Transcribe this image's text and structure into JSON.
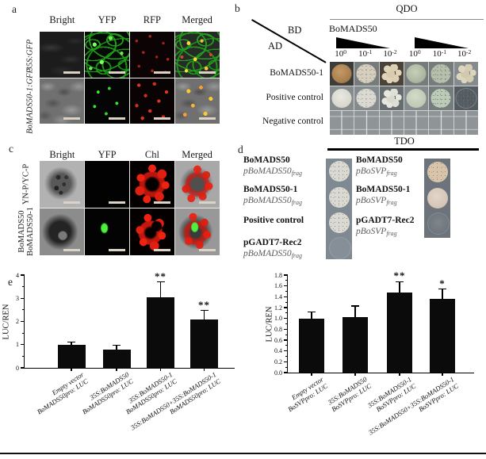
{
  "panels": {
    "a": {
      "letter": "a",
      "columns": [
        "Bright",
        "YFP",
        "RFP",
        "Merged"
      ],
      "rows": [
        {
          "label": "35S:GFP",
          "cells": [
            "bright-dark",
            "yfp-network",
            "rfp-sparse",
            "merged-network"
          ]
        },
        {
          "label": "BoMADS50-1:GFP",
          "cells": [
            "bright-light",
            "yfp-dots",
            "rfp-dots",
            "merged-dots"
          ]
        }
      ]
    },
    "b": {
      "letter": "b",
      "media_top": "QDO",
      "bd": "BD",
      "ad": "AD",
      "bait": "BoMADS50",
      "dilutions": [
        {
          "base": "10",
          "exp": "0"
        },
        {
          "base": "10",
          "exp": "-1"
        },
        {
          "base": "10",
          "exp": "-2"
        },
        {
          "base": "10",
          "exp": "0"
        },
        {
          "base": "10",
          "exp": "-1"
        },
        {
          "base": "10",
          "exp": "-2"
        }
      ],
      "rows": [
        {
          "label": "BoMADS50-1",
          "cells": [
            {
              "bg": "dark",
              "spot": "tan-solid"
            },
            {
              "bg": "mid",
              "spot": "cream-speckled"
            },
            {
              "bg": "brown",
              "spot": "cream-clumps"
            },
            {
              "bg": "mid",
              "spot": "green-solid"
            },
            {
              "bg": "mid",
              "spot": "green-speckled"
            },
            {
              "bg": "light",
              "spot": "pale-clumps"
            }
          ]
        },
        {
          "label": "Positive control",
          "cells": [
            {
              "bg": "light",
              "spot": "white-solid"
            },
            {
              "bg": "light",
              "spot": "white-speckled"
            },
            {
              "bg": "gray2",
              "spot": "white-clumps"
            },
            {
              "bg": "light",
              "spot": "palegreen-solid"
            },
            {
              "bg": "mid",
              "spot": "palegreen-speckled"
            },
            {
              "bg": "dark2",
              "spot": "faint-ring"
            }
          ]
        },
        {
          "label": "Negative control",
          "cells": [
            {
              "bg": "grid"
            },
            {
              "bg": "grid"
            },
            {
              "bg": "grid"
            },
            {
              "bg": "grid"
            },
            {
              "bg": "grid"
            },
            {
              "bg": "grid"
            }
          ]
        }
      ],
      "media_bottom": "TDO"
    },
    "c": {
      "letter": "c",
      "columns": [
        "Bright",
        "YFP",
        "Chl",
        "Merged"
      ],
      "rows": [
        {
          "label_lines": [
            "YN-P/YC-P"
          ],
          "cells": [
            "cbright1",
            "cblack",
            "cchl1",
            "cmerged1"
          ]
        },
        {
          "label_lines": [
            "BoMADS50",
            "BoMADS50-1"
          ],
          "cells": [
            "cbright2",
            "cyfp2",
            "cchl2",
            "cmerged2"
          ]
        }
      ]
    },
    "d": {
      "letter": "d",
      "left_rows": [
        {
          "name": "BoMADS50",
          "plasmid": "pBoMADS50",
          "frag": "frag"
        },
        {
          "name": "BoMADS50-1",
          "plasmid": "pBoMADS50",
          "frag": "frag"
        },
        {
          "name": "Positive control"
        },
        {
          "name": "pGADT7-Rec2",
          "plasmid": "pBoMADS50",
          "frag": "frag"
        }
      ],
      "right_rows": [
        {
          "name": "BoMADS50",
          "plasmid": "pBoSVP",
          "frag": "frag"
        },
        {
          "name": "BoMADS50-1",
          "plasmid": "pBoSVP",
          "frag": "frag"
        },
        {
          "name": "pGADT7-Rec2",
          "plasmid": "pBoSVP",
          "frag": "frag"
        }
      ],
      "left_strip": [
        "white-speckled",
        "white-speckled",
        "white-speckled",
        "ghost"
      ],
      "right_strip": [
        "tan-speckled2",
        "pink-solid",
        "dark-faint"
      ]
    },
    "e": {
      "letter": "e"
    }
  },
  "chart_data": [
    {
      "type": "bar",
      "title": "",
      "xlabel": "",
      "ylabel": "LUC/REN",
      "ylim": [
        0,
        4
      ],
      "ytick_labels": [
        "0",
        "1",
        "2",
        "3",
        "4"
      ],
      "categories": [
        [
          "Empty vector",
          "BoMADS50pro: LUC"
        ],
        [
          "35S:BoMADS50",
          "BoMADS50pro: LUC"
        ],
        [
          "35S:BoMADS50-1",
          "BoMADS50pro: LUC"
        ],
        [
          "35S:BoMADS50+35S:BoMADS50-1",
          "BoMADS50pro: LUC"
        ]
      ],
      "values": [
        1.0,
        0.8,
        3.05,
        2.1
      ],
      "errors": [
        0.1,
        0.17,
        0.65,
        0.38
      ],
      "significance": [
        "",
        "",
        "**",
        "**"
      ],
      "legend": [],
      "grid": false
    },
    {
      "type": "bar",
      "title": "",
      "xlabel": "",
      "ylabel": "LUC/REN",
      "ylim": [
        0,
        1.8
      ],
      "ytick_labels": [
        "0.0",
        "0.2",
        "0.4",
        "0.6",
        "0.8",
        "1.0",
        "1.2",
        "1.4",
        "1.6",
        "1.8"
      ],
      "categories": [
        [
          "Empty vector",
          "BoSVPpro: LUC"
        ],
        [
          "35S:BoMADS50",
          "BoSVPpro: LUC"
        ],
        [
          "35S:BoMADS50-1",
          "BoSVPpro: LUC"
        ],
        [
          "35S:BoMADS50+35S:BoMADS50-1",
          "BoSVPpro: LUC"
        ]
      ],
      "values": [
        1.0,
        1.03,
        1.48,
        1.36
      ],
      "errors": [
        0.12,
        0.2,
        0.2,
        0.18
      ],
      "significance": [
        "",
        "",
        "**",
        "*"
      ],
      "legend": [],
      "grid": false
    }
  ]
}
